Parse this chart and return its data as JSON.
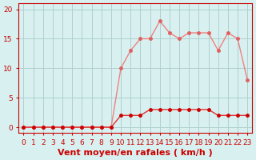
{
  "x": [
    0,
    1,
    2,
    3,
    4,
    5,
    6,
    7,
    8,
    9,
    10,
    11,
    12,
    13,
    14,
    15,
    16,
    17,
    18,
    19,
    20,
    21,
    22,
    23
  ],
  "y_mean": [
    0,
    0,
    0,
    0,
    0,
    0,
    0,
    0,
    0,
    0,
    2,
    2,
    2,
    3,
    3,
    3,
    3,
    3,
    3,
    3,
    2,
    2,
    2,
    2
  ],
  "y_gust": [
    0,
    0,
    0,
    0,
    0,
    0,
    0,
    0,
    0,
    0,
    10,
    13,
    15,
    15,
    18,
    16,
    15,
    16,
    16,
    16,
    13,
    16,
    15,
    8
  ],
  "line_color_mean": "#e03030",
  "line_color_gust": "#f08080",
  "marker_color_mean": "#cc0000",
  "marker_color_gust": "#e06060",
  "bg_color": "#d8f0f0",
  "grid_color": "#b0d0d0",
  "axis_color": "#cc0000",
  "xlabel": "Vent moyen/en rafales ( km/h )",
  "xlabel_fontsize": 8,
  "tick_fontsize": 6.5,
  "ylim": [
    -1,
    21
  ],
  "yticks": [
    0,
    5,
    10,
    15,
    20
  ],
  "xlim": [
    -0.5,
    23.5
  ]
}
